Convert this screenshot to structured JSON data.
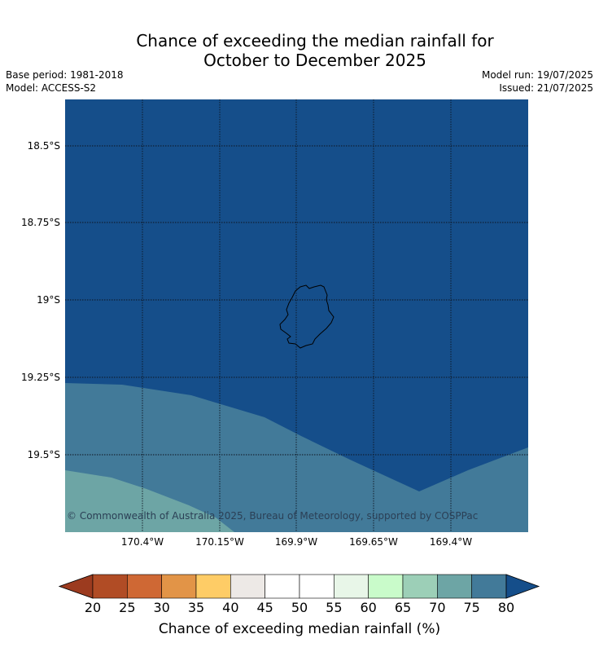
{
  "header": {
    "title_line1": "Chance of exceeding the median rainfall for",
    "title_line2": "October to December 2025",
    "base_period": "Base period: 1981-2018",
    "model": "Model: ACCESS-S2",
    "model_run": "Model run: 19/07/2025",
    "issued": "Issued: 21/07/2025"
  },
  "map": {
    "latitudes": [
      "18.5°S",
      "18.75°S",
      "19°S",
      "19.25°S",
      "19.5°S"
    ],
    "longitudes": [
      "170.4°W",
      "170.15°W",
      "169.9°W",
      "169.65°W",
      "169.4°W"
    ],
    "copyright": "© Commonwealth of Australia 2025, Bureau of Meteorology, supported by COSPPac",
    "fill_colors": {
      "above_80": "#154e8a",
      "75_80": "#427a99",
      "70_75": "#6da5a5"
    }
  },
  "legend": {
    "title": "Chance of exceeding median rainfall (%)",
    "ticks": [
      "20",
      "25",
      "30",
      "35",
      "40",
      "45",
      "50",
      "55",
      "60",
      "65",
      "70",
      "75",
      "80"
    ],
    "colors": {
      "under": "#9c3b1f",
      "bins": [
        "#b14c25",
        "#cf6834",
        "#e29447",
        "#fecc66",
        "#ede9e6",
        "#ffffff",
        "#ffffff",
        "#e8f6e8",
        "#c9fbca",
        "#9ccfb7",
        "#6da5a5",
        "#427a99"
      ],
      "over": "#154e8a"
    }
  }
}
